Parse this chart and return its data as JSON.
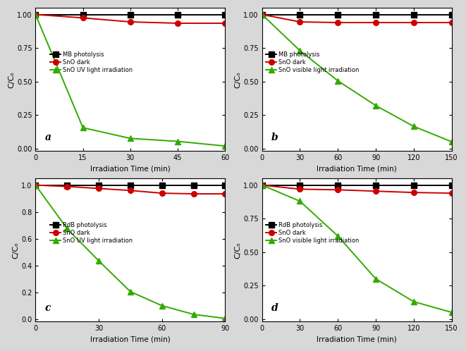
{
  "panels": [
    {
      "label": "a",
      "x_ticks": [
        0,
        15,
        30,
        45,
        60
      ],
      "xlim": [
        0,
        60
      ],
      "yticks": [
        0.0,
        0.25,
        0.5,
        0.75,
        1.0
      ],
      "ylim": [
        -0.02,
        1.05
      ],
      "series": [
        {
          "name": "MB photolysis",
          "color": "#000000",
          "marker": "s",
          "x": [
            0,
            15,
            30,
            45,
            60
          ],
          "y": [
            1.0,
            1.0,
            1.0,
            1.0,
            1.0
          ]
        },
        {
          "name": "SnO dark",
          "color": "#cc0000",
          "marker": "o",
          "x": [
            0,
            15,
            30,
            45,
            60
          ],
          "y": [
            1.0,
            0.975,
            0.945,
            0.935,
            0.935
          ]
        },
        {
          "name": "SnO UV light irradiation",
          "color": "#33aa00",
          "marker": "^",
          "x": [
            0,
            15,
            30,
            45,
            60
          ],
          "y": [
            1.0,
            0.155,
            0.075,
            0.053,
            0.018
          ]
        }
      ]
    },
    {
      "label": "b",
      "x_ticks": [
        0,
        30,
        60,
        90,
        120,
        150
      ],
      "xlim": [
        0,
        150
      ],
      "yticks": [
        0.0,
        0.25,
        0.5,
        0.75,
        1.0
      ],
      "ylim": [
        -0.02,
        1.05
      ],
      "series": [
        {
          "name": "MB photolysis",
          "color": "#000000",
          "marker": "s",
          "x": [
            0,
            30,
            60,
            90,
            120,
            150
          ],
          "y": [
            1.0,
            1.0,
            1.0,
            1.0,
            1.0,
            1.0
          ]
        },
        {
          "name": "SnO dark",
          "color": "#cc0000",
          "marker": "o",
          "x": [
            0,
            30,
            60,
            90,
            120,
            150
          ],
          "y": [
            1.0,
            0.945,
            0.94,
            0.94,
            0.94,
            0.94
          ]
        },
        {
          "name": "SnO visible light irradiation",
          "color": "#33aa00",
          "marker": "^",
          "x": [
            0,
            30,
            60,
            90,
            120,
            150
          ],
          "y": [
            1.0,
            0.73,
            0.505,
            0.32,
            0.165,
            0.05
          ]
        }
      ]
    },
    {
      "label": "c",
      "x_ticks": [
        0,
        30,
        60,
        90
      ],
      "xlim": [
        0,
        90
      ],
      "yticks": [
        0.0,
        0.2,
        0.4,
        0.6,
        0.8,
        1.0
      ],
      "ylim": [
        -0.02,
        1.05
      ],
      "series": [
        {
          "name": "RdB photolysis",
          "color": "#000000",
          "marker": "s",
          "x": [
            0,
            15,
            30,
            45,
            60,
            75,
            90
          ],
          "y": [
            1.0,
            1.0,
            1.0,
            1.0,
            1.0,
            1.0,
            1.0
          ]
        },
        {
          "name": "SnO dark",
          "color": "#cc0000",
          "marker": "o",
          "x": [
            0,
            15,
            30,
            45,
            60,
            75,
            90
          ],
          "y": [
            1.0,
            0.99,
            0.975,
            0.96,
            0.94,
            0.935,
            0.935
          ]
        },
        {
          "name": "SnO UV light irradiation",
          "color": "#33aa00",
          "marker": "^",
          "x": [
            0,
            15,
            30,
            45,
            60,
            75,
            90
          ],
          "y": [
            1.0,
            0.675,
            0.435,
            0.205,
            0.1,
            0.035,
            0.005
          ]
        }
      ]
    },
    {
      "label": "d",
      "x_ticks": [
        0,
        30,
        60,
        90,
        120,
        150
      ],
      "xlim": [
        0,
        150
      ],
      "yticks": [
        0.0,
        0.25,
        0.5,
        0.75,
        1.0
      ],
      "ylim": [
        -0.02,
        1.05
      ],
      "series": [
        {
          "name": "RdB photolysis",
          "color": "#000000",
          "marker": "s",
          "x": [
            0,
            30,
            60,
            90,
            120,
            150
          ],
          "y": [
            1.0,
            1.0,
            1.0,
            1.0,
            1.0,
            1.0
          ]
        },
        {
          "name": "SnO dark",
          "color": "#cc0000",
          "marker": "o",
          "x": [
            0,
            30,
            60,
            90,
            120,
            150
          ],
          "y": [
            1.0,
            0.97,
            0.965,
            0.955,
            0.945,
            0.94
          ]
        },
        {
          "name": "SnO visible light irradiation",
          "color": "#33aa00",
          "marker": "^",
          "x": [
            0,
            30,
            60,
            90,
            120,
            150
          ],
          "y": [
            1.0,
            0.88,
            0.62,
            0.3,
            0.13,
            0.05
          ]
        }
      ]
    }
  ],
  "ylabel": "C/Cₒ",
  "xlabel": "Irradiation Time (min)",
  "bg_color": "#ffffff",
  "fig_bg_color": "#d8d8d8",
  "line_width": 1.4,
  "marker_size": 5.5
}
